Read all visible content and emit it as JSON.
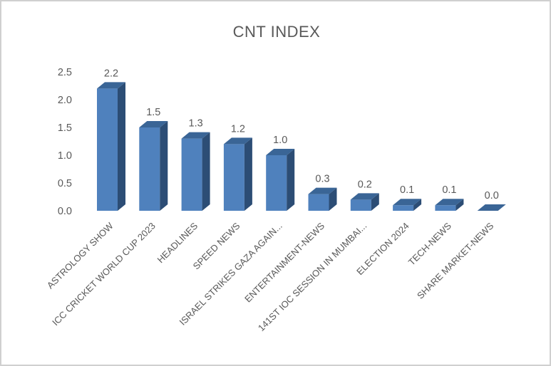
{
  "frame": {
    "background": "#ffffff",
    "border_color": "#d0d0d0"
  },
  "chart_data": {
    "type": "bar",
    "projection": "3d",
    "title": "CNT INDEX",
    "categories": [
      "ASTROLOGY SHOW",
      "ICC CRICKET WORLD CUP 2023",
      "HEADLINES",
      "SPEED NEWS",
      "ISRAEL STRIKES GAZA AGAIN...",
      "ENTERTAINMENT-NEWS",
      "141ST IOC SESSION IN MUMBAI...",
      "ELECTION 2024",
      "TECH-NEWS",
      "SHARE MARKET-NEWS"
    ],
    "values": [
      2.2,
      1.5,
      1.3,
      1.2,
      1.0,
      0.3,
      0.2,
      0.1,
      0.1,
      0.0
    ],
    "data_labels": [
      "2.2",
      "1.5",
      "1.3",
      "1.2",
      "1.0",
      "0.3",
      "0.2",
      "0.1",
      "0.1",
      "0.0"
    ],
    "yticks": [
      "0.0",
      "0.5",
      "1.0",
      "1.5",
      "2.0",
      "2.5"
    ],
    "ytick_values": [
      0,
      0.5,
      1.0,
      1.5,
      2.0,
      2.5
    ],
    "ylim": [
      0,
      2.5
    ],
    "xlabel": "",
    "ylabel": "",
    "grid": false,
    "legend_position": "none",
    "x_label_rotation_deg": 45,
    "colors": {
      "bar_front": "#4F81BD",
      "bar_side": "#2C4D75",
      "bar_top": "#3A6596",
      "text": "#595959"
    }
  }
}
